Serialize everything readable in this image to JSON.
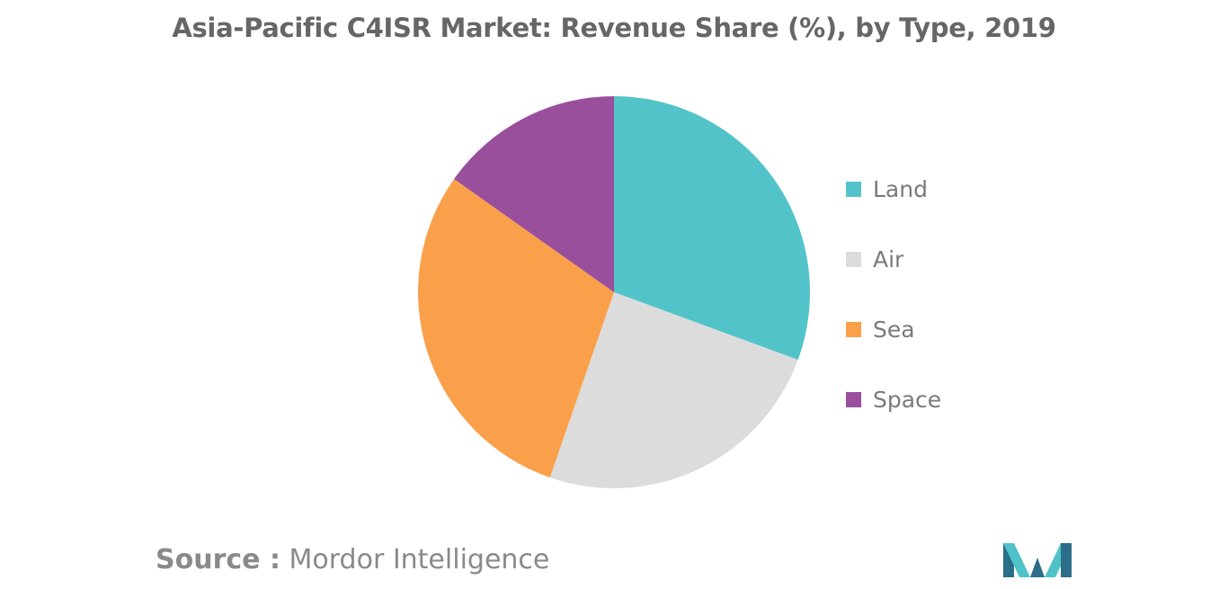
{
  "chart_data": {
    "type": "pie",
    "title": "Asia-Pacific C4ISR Market: Revenue Share (%), by Type, 2019",
    "categories": [
      "Land",
      "Air",
      "Sea",
      "Space"
    ],
    "values": [
      30.6,
      24.7,
      29.5,
      15.2
    ],
    "colors": [
      "#52c4c9",
      "#dcdcdc",
      "#faa04b",
      "#9a4f9c"
    ],
    "legend_position": "right",
    "start_angle": "top, clockwise"
  },
  "source": {
    "prefix": "Source :",
    "name": "Mordor Intelligence"
  },
  "logo": {
    "icon": "mordor-intelligence-logo",
    "colors": [
      "#2c6e8a",
      "#4fc3c8"
    ]
  }
}
